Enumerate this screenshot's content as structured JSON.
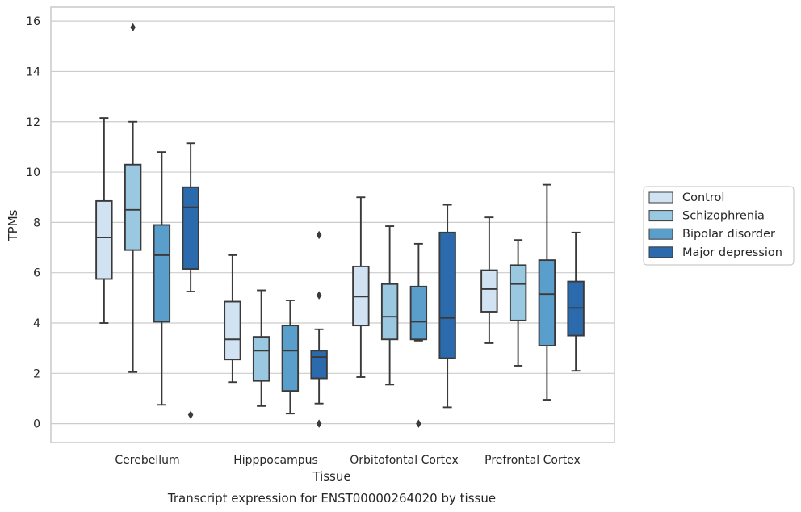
{
  "chart_data": {
    "type": "boxplot",
    "caption": "Transcript expression for ENST00000264020 by tissue",
    "xlabel": "Tissue",
    "ylabel": "TPMs",
    "ylim": [
      -0.75,
      16.55
    ],
    "yticks": [
      0,
      2,
      4,
      6,
      8,
      10,
      12,
      14,
      16
    ],
    "ytick_labels": [
      "0",
      "2",
      "4",
      "6",
      "8",
      "10",
      "12",
      "14",
      "16"
    ],
    "grid": "horizontal",
    "legend_position": "right",
    "categories": [
      "Cerebellum",
      "Hipppocampus",
      "Orbitofontal Cortex",
      "Prefrontal Cortex"
    ],
    "colors": {
      "Control": "#d1e2f2",
      "Schizophrenia": "#9ac8e0",
      "Bipolar disorder": "#5a9fcc",
      "Major depression": "#2a6aad",
      "edge": "#3a3a3a",
      "grid": "#cccccc",
      "frame": "#cccccc"
    },
    "series": [
      {
        "name": "Control",
        "boxes": [
          {
            "whislo": 4.0,
            "q1": 5.75,
            "med": 7.4,
            "q3": 8.85,
            "whishi": 12.15,
            "fliers": []
          },
          {
            "whislo": 1.65,
            "q1": 2.55,
            "med": 3.35,
            "q3": 4.85,
            "whishi": 6.7,
            "fliers": []
          },
          {
            "whislo": 1.85,
            "q1": 3.9,
            "med": 5.05,
            "q3": 6.25,
            "whishi": 9.0,
            "fliers": []
          },
          {
            "whislo": 3.2,
            "q1": 4.45,
            "med": 5.35,
            "q3": 6.1,
            "whishi": 8.2,
            "fliers": []
          }
        ]
      },
      {
        "name": "Schizophrenia",
        "boxes": [
          {
            "whislo": 2.05,
            "q1": 6.9,
            "med": 8.5,
            "q3": 10.3,
            "whishi": 12.0,
            "fliers": [
              15.75
            ]
          },
          {
            "whislo": 0.7,
            "q1": 1.7,
            "med": 2.9,
            "q3": 3.45,
            "whishi": 5.3,
            "fliers": []
          },
          {
            "whislo": 1.55,
            "q1": 3.35,
            "med": 4.25,
            "q3": 5.55,
            "whishi": 7.85,
            "fliers": []
          },
          {
            "whislo": 2.3,
            "q1": 4.1,
            "med": 5.55,
            "q3": 6.3,
            "whishi": 7.3,
            "fliers": []
          }
        ]
      },
      {
        "name": "Bipolar disorder",
        "boxes": [
          {
            "whislo": 0.75,
            "q1": 4.05,
            "med": 6.7,
            "q3": 7.9,
            "whishi": 10.8,
            "fliers": []
          },
          {
            "whislo": 0.4,
            "q1": 1.3,
            "med": 2.9,
            "q3": 3.9,
            "whishi": 4.9,
            "fliers": []
          },
          {
            "whislo": 3.3,
            "q1": 3.35,
            "med": 4.05,
            "q3": 5.45,
            "whishi": 7.15,
            "fliers": [
              0.0
            ]
          },
          {
            "whislo": 0.95,
            "q1": 3.1,
            "med": 5.15,
            "q3": 6.5,
            "whishi": 9.5,
            "fliers": []
          }
        ]
      },
      {
        "name": "Major depression",
        "boxes": [
          {
            "whislo": 5.25,
            "q1": 6.15,
            "med": 8.6,
            "q3": 9.4,
            "whishi": 11.15,
            "fliers": [
              0.35
            ]
          },
          {
            "whislo": 0.8,
            "q1": 1.8,
            "med": 2.65,
            "q3": 2.9,
            "whishi": 3.75,
            "fliers": [
              7.5,
              5.1,
              0.0
            ]
          },
          {
            "whislo": 0.65,
            "q1": 2.6,
            "med": 4.2,
            "q3": 7.6,
            "whishi": 8.7,
            "fliers": []
          },
          {
            "whislo": 2.1,
            "q1": 3.5,
            "med": 4.6,
            "q3": 5.65,
            "whishi": 7.6,
            "fliers": []
          }
        ]
      }
    ]
  }
}
